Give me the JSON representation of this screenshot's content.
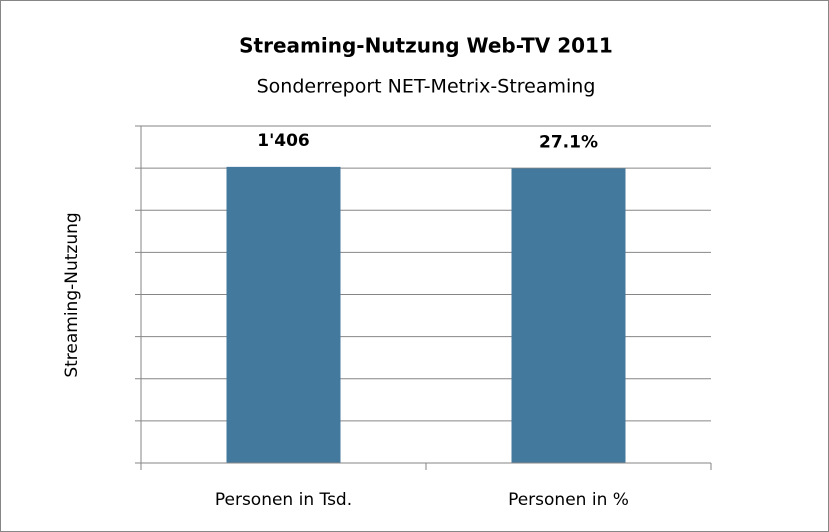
{
  "chart_data": {
    "type": "bar",
    "title": "Streaming-Nutzung Web-TV 2011",
    "subtitle": "Sonderreport NET-Metrix-Streaming",
    "y_label": "Streaming-Nutzung",
    "categories": [
      "Personen in Tsd.",
      "Personen in %"
    ],
    "series": [
      {
        "color": "#44799e",
        "values": [
          1406,
          null
        ],
        "value_labels": [
          "1'406",
          null
        ]
      },
      {
        "color": "#44799e",
        "axis": "y2",
        "values": [
          null,
          27.1
        ],
        "value_labels": [
          null,
          "27.1%"
        ]
      }
    ],
    "ylim": [
      0,
      1600
    ],
    "yticks": [
      0,
      200,
      400,
      600,
      800,
      1000,
      1200,
      1400,
      1600
    ],
    "y2lim": [
      0,
      31
    ],
    "grid": true
  }
}
